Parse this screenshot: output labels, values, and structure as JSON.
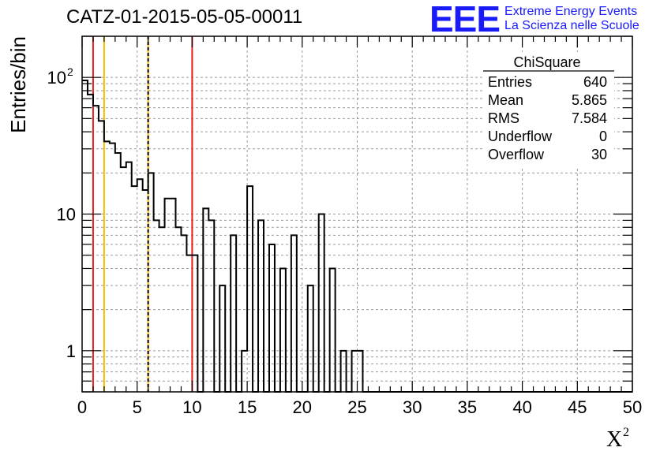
{
  "title": "CATZ-01-2015-05-05-00011",
  "logo": {
    "mark": "EEE",
    "line1": "Extreme Energy Events",
    "line2": "La Scienza nelle Scuole",
    "color": "#1a1aff"
  },
  "stats": {
    "title": "ChiSquare",
    "rows": [
      {
        "label": "Entries",
        "value": "640"
      },
      {
        "label": "Mean",
        "value": "5.865"
      },
      {
        "label": "RMS",
        "value": "7.584"
      },
      {
        "label": "Underflow",
        "value": "0"
      },
      {
        "label": "Overflow",
        "value": "30"
      }
    ]
  },
  "chart_data": {
    "type": "bar",
    "ylabel": "Entries/bin",
    "xlabel_base": "X",
    "xlabel_sup": "2",
    "xlim": [
      0,
      50
    ],
    "ylim": [
      0.5,
      200
    ],
    "yscale": "log",
    "grid": true,
    "bin_width": 0.5,
    "x_ticks": [
      "0",
      "5",
      "10",
      "15",
      "20",
      "25",
      "30",
      "35",
      "40",
      "45",
      "50"
    ],
    "y_ticks": [
      {
        "value": 100,
        "label": "10",
        "sup": "2"
      },
      {
        "value": 10,
        "label": "10",
        "sup": ""
      },
      {
        "value": 1,
        "label": "1",
        "sup": ""
      }
    ],
    "values": [
      95,
      75,
      62,
      48,
      34,
      33,
      28,
      22,
      24,
      16,
      18,
      15,
      20,
      9,
      8,
      13,
      13,
      8,
      7,
      5,
      5,
      0,
      11,
      9,
      0,
      3,
      0,
      7,
      0,
      1,
      16,
      0,
      9,
      0,
      6,
      0,
      4,
      0,
      7,
      0,
      0,
      3,
      0,
      10,
      0,
      4,
      0,
      1,
      0,
      1,
      1,
      0,
      0,
      0,
      0,
      0,
      0,
      0,
      0,
      0,
      0,
      0,
      0,
      0,
      0,
      0,
      0,
      0,
      0,
      0,
      0,
      0,
      0,
      0,
      0,
      0,
      0,
      0,
      0,
      0,
      0,
      0,
      0,
      0,
      0,
      0,
      0,
      0,
      0,
      0,
      0,
      0,
      0,
      0,
      0,
      0,
      0,
      0,
      0,
      0
    ],
    "vlines": [
      {
        "x": 1,
        "color": "#e0201a",
        "style": "solid"
      },
      {
        "x": 2,
        "color": "#f5b800",
        "style": "solid"
      },
      {
        "x": 6,
        "color": "#f5b800",
        "style": "solid"
      },
      {
        "x": 6,
        "color": "#000000",
        "style": "dashed"
      },
      {
        "x": 10,
        "color": "#e0201a",
        "style": "solid"
      }
    ]
  }
}
